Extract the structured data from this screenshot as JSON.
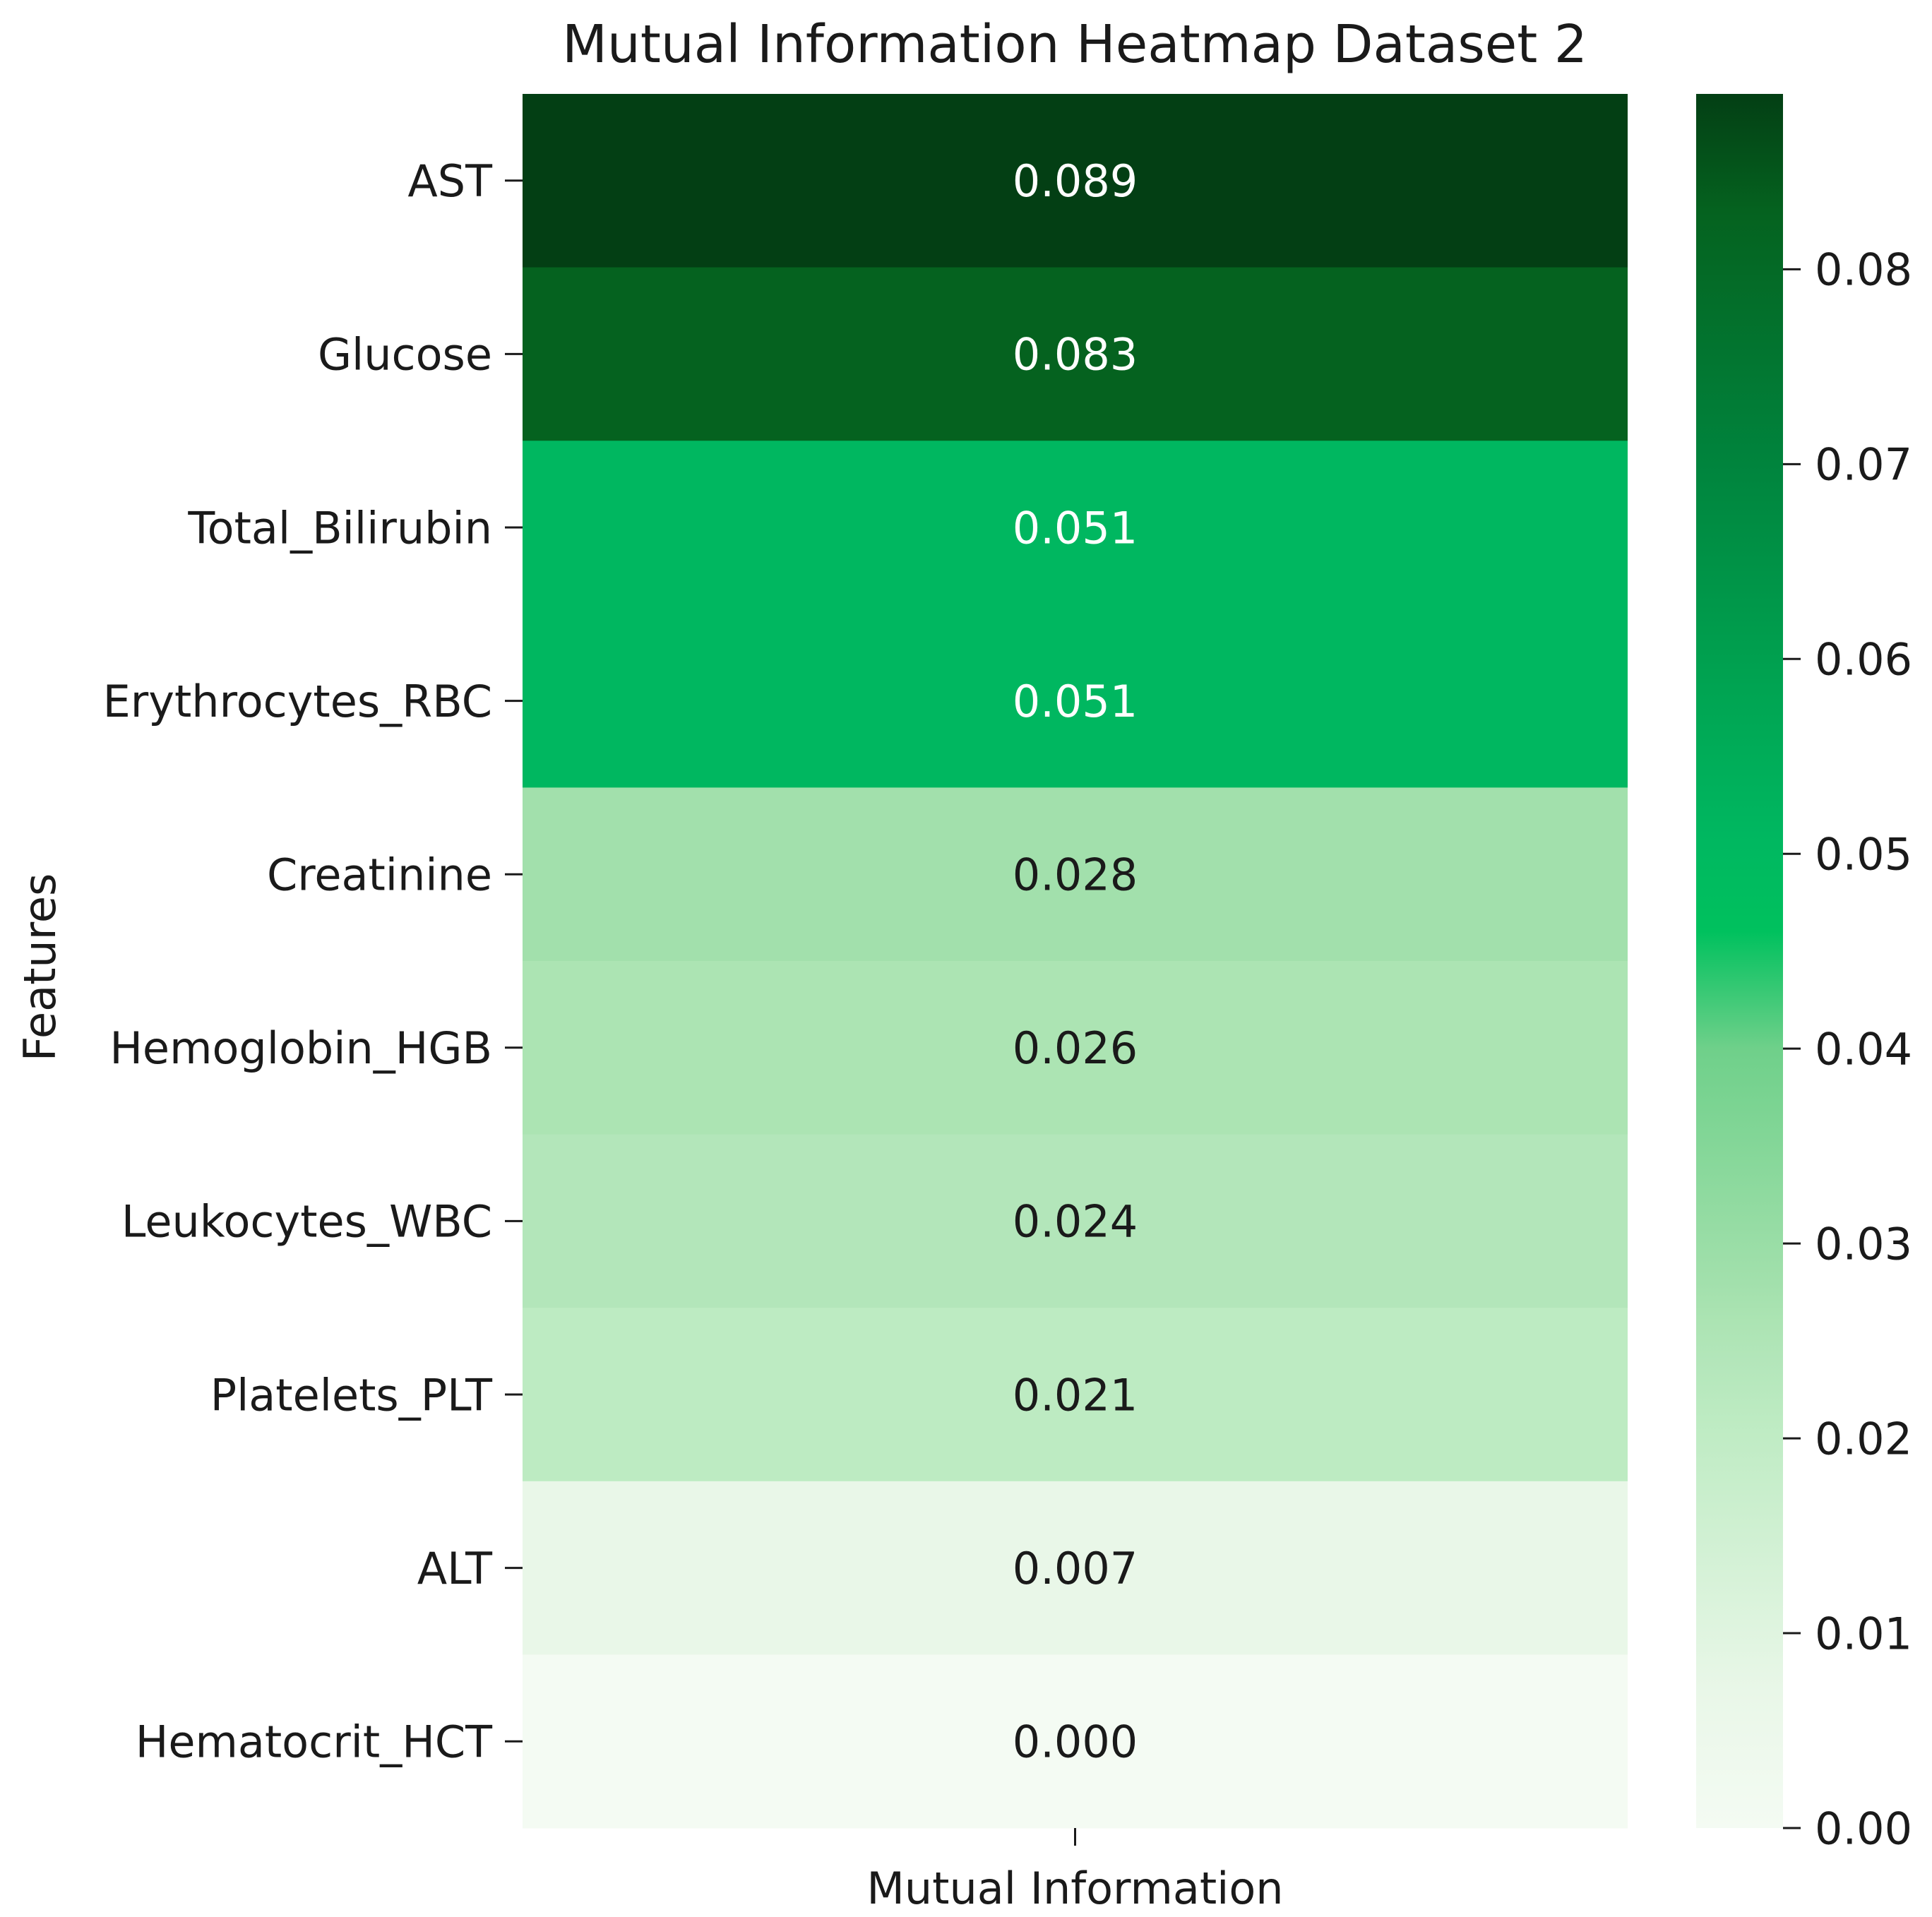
{
  "chart_data": {
    "type": "heatmap",
    "title": "Mutual Information Heatmap Dataset 2",
    "xlabel": "",
    "ylabel": "Features",
    "x_categories": [
      "Mutual Information"
    ],
    "y_categories": [
      "AST",
      "Glucose",
      "Total_Bilirubin",
      "Erythrocytes_RBC",
      "Creatinine",
      "Hemoglobin_HGB",
      "Leukocytes_WBC",
      "Platelets_PLT",
      "ALT",
      "Hematocrit_HCT"
    ],
    "values": [
      0.089,
      0.083,
      0.051,
      0.051,
      0.028,
      0.026,
      0.024,
      0.021,
      0.007,
      0.0
    ],
    "value_labels": [
      "0.089",
      "0.083",
      "0.051",
      "0.051",
      "0.028",
      "0.026",
      "0.024",
      "0.021",
      "0.007",
      "0.000"
    ],
    "colorbar": {
      "range": [
        0.0,
        0.089
      ],
      "ticks": [
        0.0,
        0.01,
        0.02,
        0.03,
        0.04,
        0.05,
        0.06,
        0.07,
        0.08
      ],
      "tick_labels": [
        "0.00",
        "0.01",
        "0.02",
        "0.03",
        "0.04",
        "0.05",
        "0.06",
        "0.07",
        "0.08"
      ]
    },
    "colormap": [
      {
        "v": 0.0,
        "color": "#f4fbf3"
      },
      {
        "v": 0.007,
        "color": "#e9f7e8"
      },
      {
        "v": 0.021,
        "color": "#bdebc2"
      },
      {
        "v": 0.024,
        "color": "#b3e6ba"
      },
      {
        "v": 0.026,
        "color": "#ace4b3"
      },
      {
        "v": 0.028,
        "color": "#a2e0ac"
      },
      {
        "v": 0.04,
        "color": "#6fd08a"
      },
      {
        "v": 0.046,
        "color": "#00c15e"
      },
      {
        "v": 0.051,
        "color": "#00b760"
      },
      {
        "v": 0.06,
        "color": "#00a04f"
      },
      {
        "v": 0.07,
        "color": "#00843d"
      },
      {
        "v": 0.083,
        "color": "#05621f"
      },
      {
        "v": 0.089,
        "color": "#033f14"
      }
    ],
    "label_colors": {
      "dark": "#1a1a1a",
      "light": "#ffffff"
    },
    "light_label_threshold": 0.045,
    "grid": false
  }
}
